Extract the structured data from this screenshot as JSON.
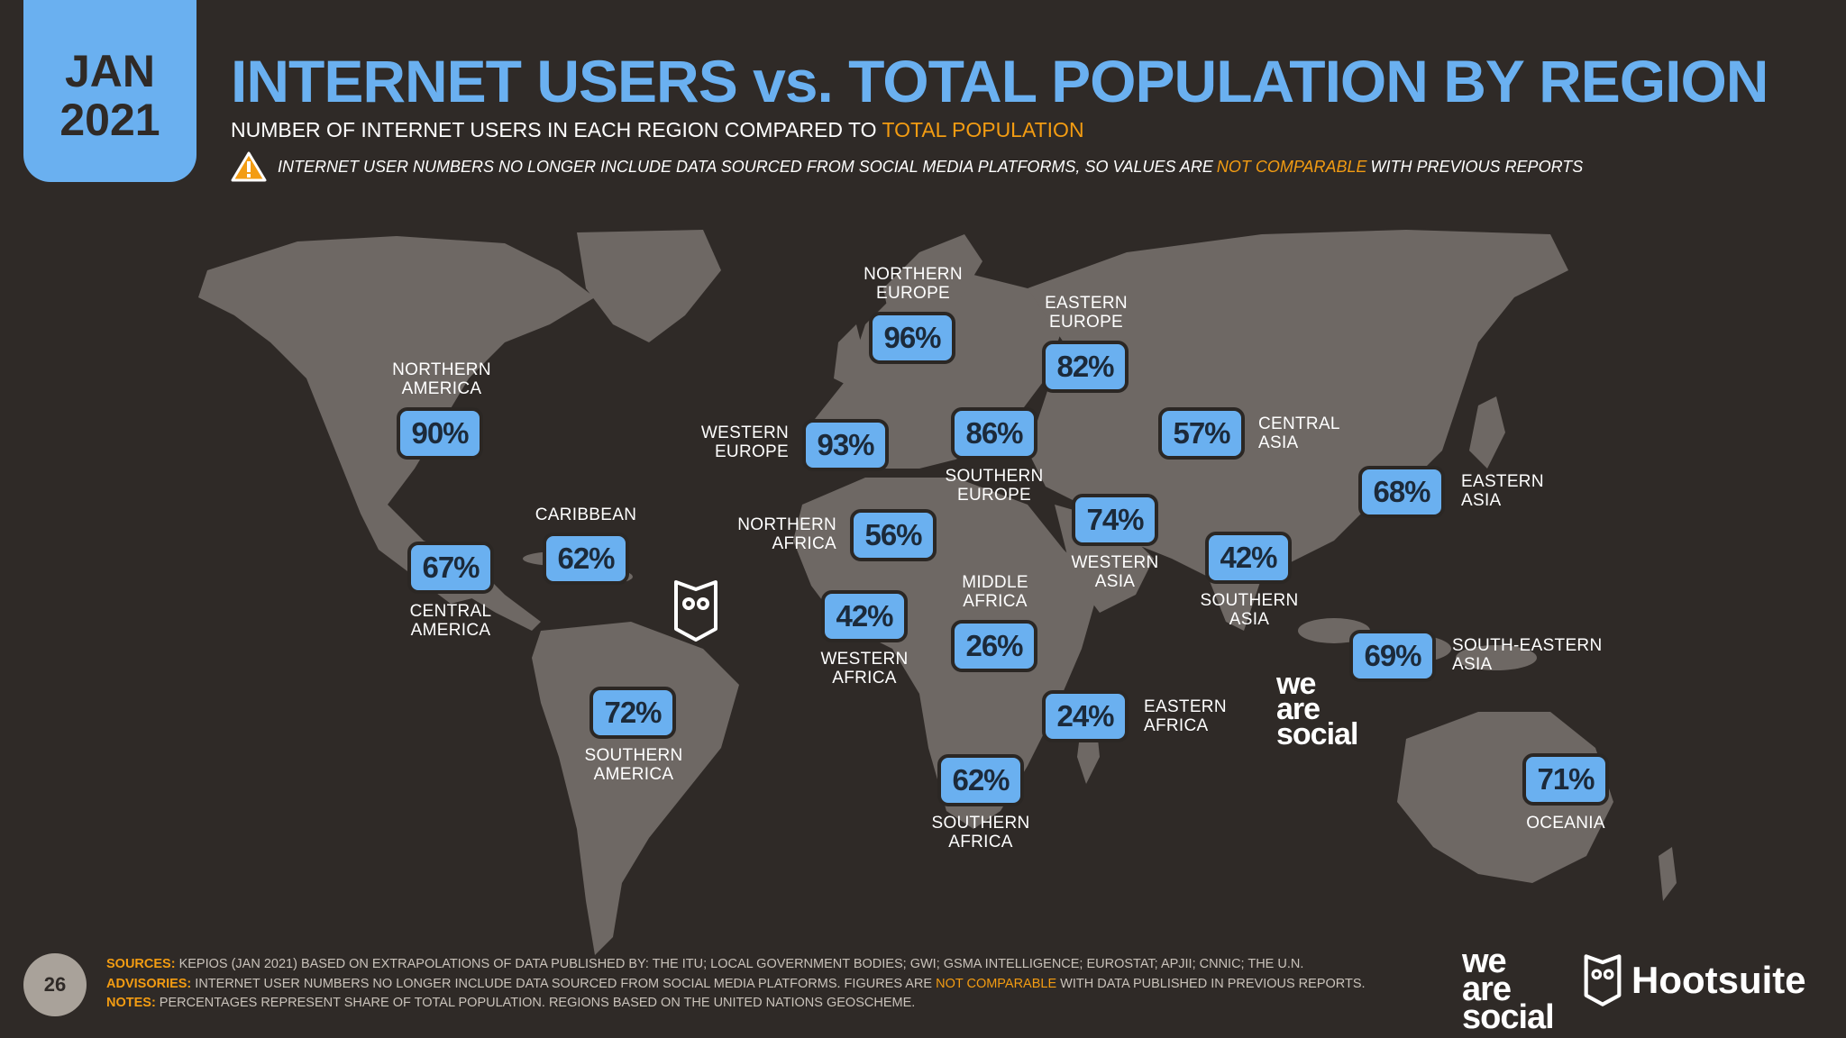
{
  "date_tab": {
    "month": "JAN",
    "year": "2021"
  },
  "title": "INTERNET USERS vs. TOTAL POPULATION BY REGION",
  "subtitle": {
    "main": "NUMBER OF INTERNET USERS IN EACH REGION COMPARED TO ",
    "highlight": "TOTAL POPULATION"
  },
  "warning": {
    "pre": "INTERNET USER NUMBERS NO LONGER INCLUDE DATA SOURCED FROM SOCIAL MEDIA PLATFORMS, SO VALUES ARE ",
    "highlight": "NOT COMPARABLE",
    "post": " WITH PREVIOUS REPORTS"
  },
  "regions": [
    {
      "name": "NORTHERN\nAMERICA",
      "value": "90%"
    },
    {
      "name": "CENTRAL\nAMERICA",
      "value": "67%"
    },
    {
      "name": "CARIBBEAN",
      "value": "62%"
    },
    {
      "name": "SOUTHERN\nAMERICA",
      "value": "72%"
    },
    {
      "name": "NORTHERN\nEUROPE",
      "value": "96%"
    },
    {
      "name": "WESTERN\nEUROPE",
      "value": "93%"
    },
    {
      "name": "SOUTHERN\nEUROPE",
      "value": "86%"
    },
    {
      "name": "EASTERN\nEUROPE",
      "value": "82%"
    },
    {
      "name": "CENTRAL\nASIA",
      "value": "57%"
    },
    {
      "name": "NORTHERN\nAFRICA",
      "value": "56%"
    },
    {
      "name": "WESTERN\nAFRICA",
      "value": "42%"
    },
    {
      "name": "MIDDLE\nAFRICA",
      "value": "26%"
    },
    {
      "name": "EASTERN\nAFRICA",
      "value": "24%"
    },
    {
      "name": "SOUTHERN\nAFRICA",
      "value": "62%"
    },
    {
      "name": "WESTERN\nASIA",
      "value": "74%"
    },
    {
      "name": "SOUTHERN\nASIA",
      "value": "42%"
    },
    {
      "name": "EASTERN\nASIA",
      "value": "68%"
    },
    {
      "name": "SOUTH-EASTERN\nASIA",
      "value": "69%"
    },
    {
      "name": "OCEANIA",
      "value": "71%"
    }
  ],
  "footer": {
    "page_number": "26",
    "sources_label": "SOURCES:",
    "sources_text": " KEPIOS (JAN 2021) BASED ON EXTRAPOLATIONS OF DATA PUBLISHED BY: THE ITU; LOCAL GOVERNMENT BODIES; GWI; GSMA INTELLIGENCE; EUROSTAT; APJII; CNNIC; THE U.N.",
    "advisories_label": "ADVISORIES:",
    "advisories_text_1": " INTERNET USER NUMBERS NO LONGER INCLUDE DATA SOURCED FROM SOCIAL MEDIA PLATFORMS. FIGURES ARE ",
    "advisories_highlight": "NOT COMPARABLE",
    "advisories_text_2": " WITH DATA PUBLISHED IN PREVIOUS REPORTS. ",
    "notes_label": "NOTES:",
    "notes_text": " PERCENTAGES REPRESENT SHARE OF TOTAL POPULATION. REGIONS BASED ON THE UNITED NATIONS GEOSCHEME."
  },
  "logos": {
    "we_are_social": [
      "we",
      "are",
      "social"
    ],
    "hootsuite": "Hootsuite"
  },
  "colors": {
    "accent": "#6ab0f0",
    "highlight": "#f39c12",
    "background": "#2f2a27",
    "land": "#6e6864"
  }
}
